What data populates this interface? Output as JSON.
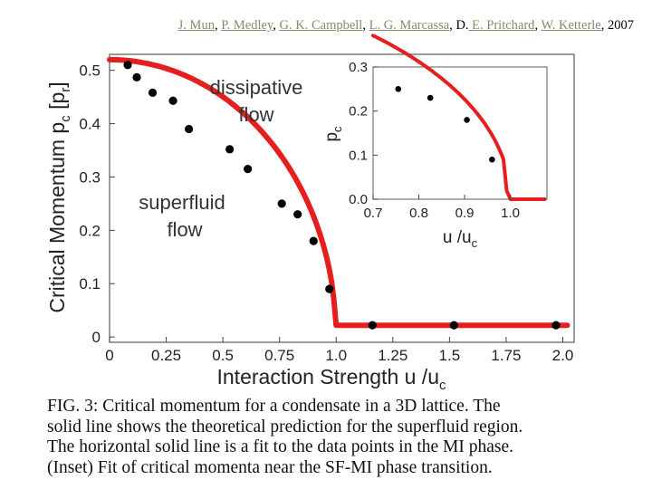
{
  "header": {
    "authors": [
      {
        "name": "J. Mun",
        "linked": true
      },
      {
        "name": "P. Medley",
        "linked": true
      },
      {
        "name": "G. K. Campbell",
        "linked": true
      },
      {
        "name": "L. G. Marcassa",
        "linked": true
      },
      {
        "name": "D.",
        "linked": false
      },
      {
        "name": " E. Pritchard",
        "linked": true
      },
      {
        "name": "W. Ketterle",
        "linked": true
      }
    ],
    "year": "2007"
  },
  "chart_data": [
    {
      "type": "scatter",
      "xlabel": "Interaction Strength u /u",
      "xlabel_sub": "c",
      "ylabel": "Critical Momentum p",
      "ylabel_sub": "c",
      "ylabel_unit_open": " [p",
      "ylabel_unit_sub": "r",
      "ylabel_unit_close": "]",
      "xlim": [
        0,
        2.05
      ],
      "ylim": [
        -0.01,
        0.53
      ],
      "xticks": [
        "0",
        "0.25",
        "0.5",
        "0.75",
        "1.0",
        "1.25",
        "1.5",
        "1.75",
        "2.0"
      ],
      "yticks": [
        "0",
        "0.1",
        "0.2",
        "0.3",
        "0.4",
        "0.5"
      ],
      "annotations": [
        {
          "text": "dissipative",
          "line": 0
        },
        {
          "text": "flow",
          "line": 1
        },
        {
          "text": "superfluid",
          "line": 0
        },
        {
          "text": "flow",
          "line": 1
        }
      ],
      "points": {
        "x": [
          0.08,
          0.12,
          0.19,
          0.28,
          0.35,
          0.53,
          0.61,
          0.76,
          0.83,
          0.9,
          0.97,
          1.16,
          1.52,
          1.97
        ],
        "y": [
          0.51,
          0.487,
          0.458,
          0.443,
          0.39,
          0.352,
          0.315,
          0.25,
          0.23,
          0.18,
          0.09,
          0.022,
          0.022,
          0.022
        ]
      },
      "line_color": "#e61e1e",
      "point_color": "#000000",
      "grid": false
    },
    {
      "type": "scatter",
      "role": "inset",
      "xlabel": "u /u",
      "xlabel_sub": "c",
      "ylabel": "p",
      "ylabel_sub": "c",
      "xlim": [
        0.7,
        1.08
      ],
      "ylim": [
        0,
        0.3
      ],
      "xticks": [
        "0.7",
        "0.8",
        "0.9",
        "1.0"
      ],
      "yticks": [
        "0.0",
        "0.1",
        "0.2",
        "0.3"
      ],
      "points": {
        "x": [
          0.755,
          0.825,
          0.905,
          0.96
        ],
        "y": [
          0.25,
          0.23,
          0.18,
          0.09
        ]
      },
      "line_color": "#e61e1e",
      "point_color": "#000000",
      "grid": false
    }
  ],
  "caption": {
    "lines": [
      "FIG. 3:   Critical momentum for a condensate in a 3D lattice.  The",
      "solid line shows the theoretical prediction for the superfluid region.",
      "The horizontal solid line is a fit to the data points in the MI phase.",
      "(Inset) Fit of critical momenta near the SF-MI phase transition."
    ]
  }
}
